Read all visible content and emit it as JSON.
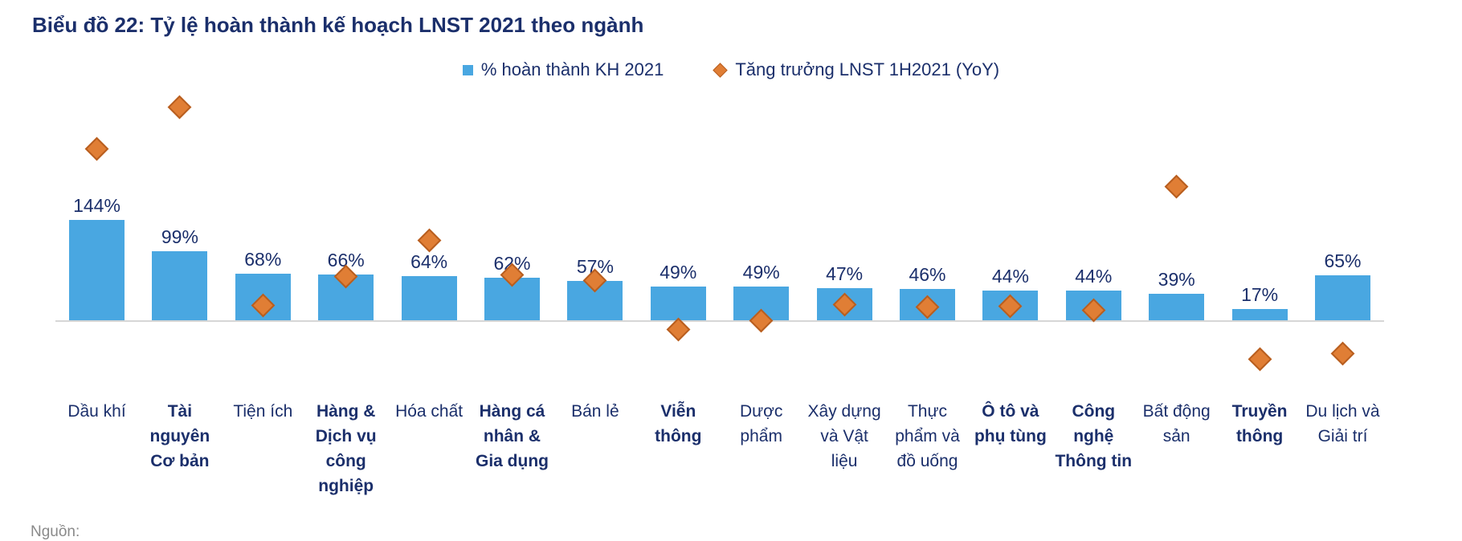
{
  "palette": {
    "bar_fill": "#49A7E1",
    "diamond_fill": "#E07E35",
    "diamond_border": "#B85E1F",
    "text_navy": "#1B2F6B",
    "axis_line": "#D6D6D6"
  },
  "chart_data": {
    "type": "bar",
    "title": "Biểu đồ 22: Tỷ lệ hoàn thành kế hoạch LNST 2021 theo ngành",
    "legend_position": "top-center",
    "grid": false,
    "ylim": [
      -100,
      360
    ],
    "baseline": 0,
    "categories": [
      "Dầu khí",
      "Tài\nnguyên\nCơ bản",
      "Tiện ích",
      "Hàng &\nDịch vụ\ncông\nnghiệp",
      "Hóa chất",
      "Hàng cá\nnhân &\nGia dụng",
      "Bán lẻ",
      "Viễn\nthông",
      "Dược\nphẩm",
      "Xây dựng\nvà Vật\nliệu",
      "Thực\nphẩm và\nđồ uống",
      "Ô tô và\nphụ tùng",
      "Công\nnghệ\nThông tin",
      "Bất động\nsản",
      "Truyền\nthông",
      "Du lịch và\nGiải trí"
    ],
    "categories_bold": [
      false,
      true,
      false,
      true,
      false,
      true,
      false,
      true,
      false,
      false,
      false,
      true,
      true,
      false,
      true,
      false
    ],
    "series": [
      {
        "name": "% hoàn thành KH 2021",
        "type": "bar",
        "unit": "%",
        "values": [
          144,
          99,
          68,
          66,
          64,
          62,
          57,
          49,
          49,
          47,
          46,
          44,
          44,
          39,
          17,
          65
        ],
        "data_labels": [
          "144%",
          "99%",
          "68%",
          "66%",
          "64%",
          "62%",
          "57%",
          "49%",
          "49%",
          "47%",
          "46%",
          "44%",
          "44%",
          "39%",
          "17%",
          "65%"
        ]
      },
      {
        "name": "Tăng trưởng LNST 1H2021 (YoY)",
        "type": "scatter",
        "marker": "diamond",
        "unit": "%",
        "values_estimated": [
          245,
          305,
          22,
          63,
          115,
          66,
          58,
          -12,
          1,
          23,
          20,
          21,
          16,
          192,
          -54,
          -46
        ]
      }
    ]
  },
  "footer": {
    "source_prefix": "Nguồn:"
  }
}
